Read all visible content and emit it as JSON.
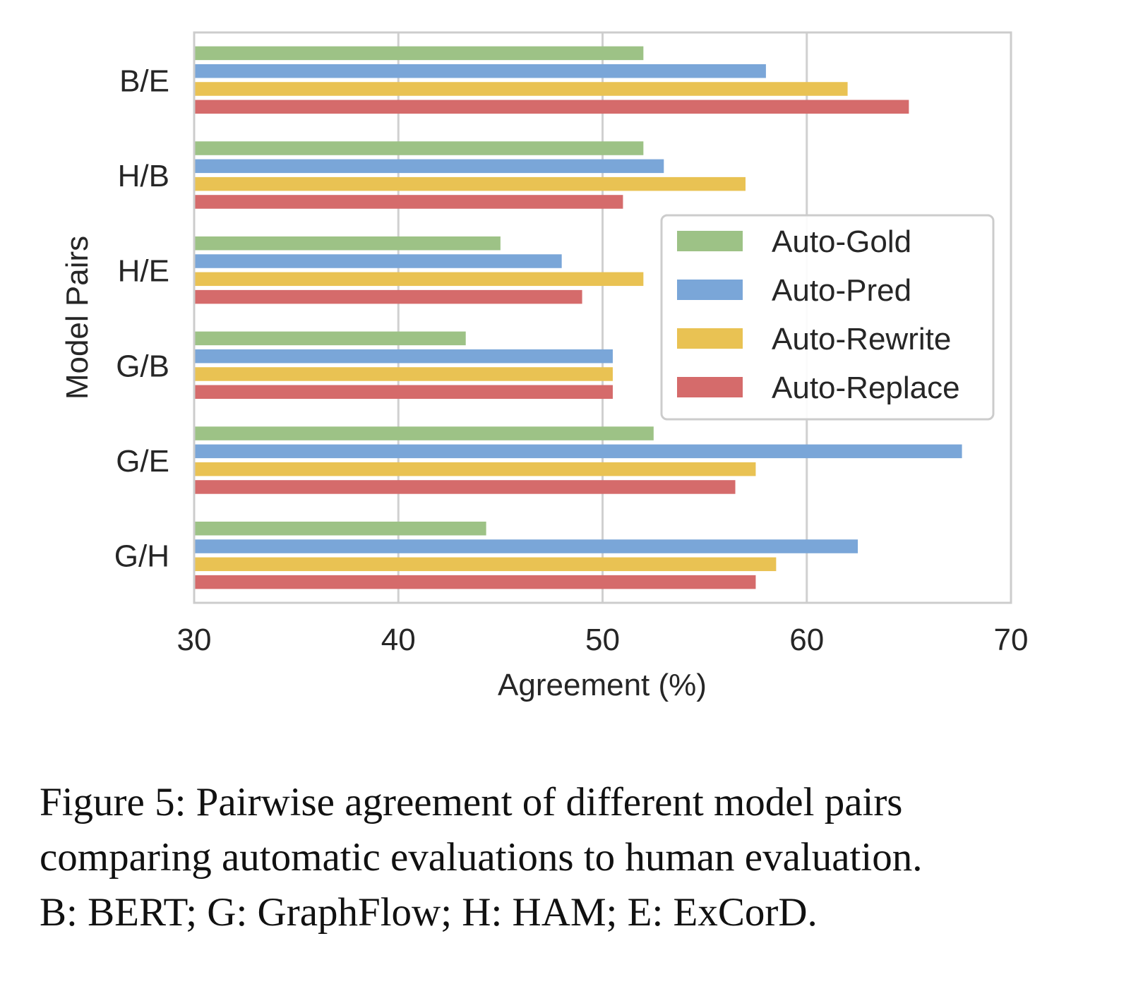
{
  "chart_data": {
    "type": "bar",
    "orientation": "horizontal",
    "title": "",
    "xlabel": "Agreement (%)",
    "ylabel": "Model Pairs",
    "xlim": [
      30,
      70
    ],
    "xticks": [
      "30",
      "40",
      "50",
      "60",
      "70"
    ],
    "categories": [
      "B/E",
      "H/B",
      "H/E",
      "G/B",
      "G/E",
      "G/H"
    ],
    "grid": "vertical",
    "legend_position": "right",
    "series": [
      {
        "name": "Auto-Gold",
        "color": "#9dc286",
        "values": [
          52,
          52,
          45,
          43.3,
          52.5,
          44.3
        ]
      },
      {
        "name": "Auto-Pred",
        "color": "#7aa6d8",
        "values": [
          58,
          53,
          48,
          50.5,
          67.6,
          62.5
        ]
      },
      {
        "name": "Auto-Rewrite",
        "color": "#e9c253",
        "values": [
          62,
          57,
          52,
          50.5,
          57.5,
          58.5
        ]
      },
      {
        "name": "Auto-Replace",
        "color": "#d56b6b",
        "values": [
          65,
          51,
          49,
          50.5,
          56.5,
          57.5
        ]
      }
    ]
  },
  "caption": {
    "lines": [
      "Figure 5: Pairwise agreement of different model pairs",
      "comparing automatic evaluations to human evaluation.",
      "B: BERT; G: GraphFlow; H: HAM; E: ExCorD."
    ]
  },
  "colors": {
    "frame": "#cccccc",
    "grid": "#d0d0d0",
    "text": "#262626"
  }
}
